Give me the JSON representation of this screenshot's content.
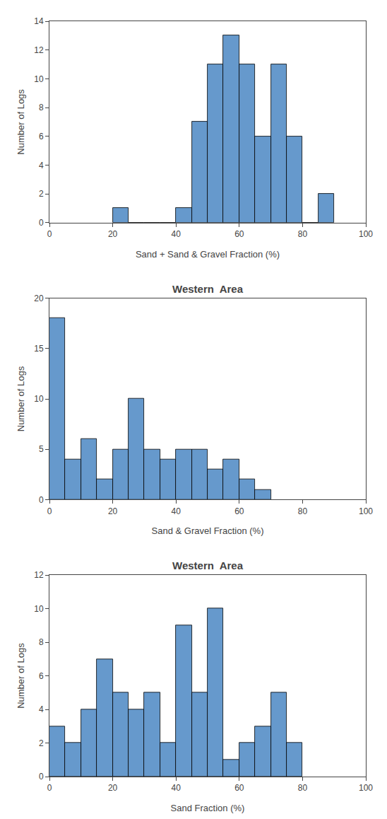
{
  "chart_data": [
    {
      "type": "histogram",
      "xlabel": "Sand + Sand & Gravel Fraction (%)",
      "ylabel": "Number of Logs",
      "bins": [
        20,
        25,
        30,
        35,
        40,
        45,
        50,
        55,
        60,
        65,
        70,
        75,
        80,
        85,
        90
      ],
      "values": [
        1,
        0,
        0,
        0,
        1,
        7,
        11,
        13,
        11,
        6,
        11,
        6,
        0,
        2
      ],
      "color": "#6699CC",
      "xlim": [
        0,
        100
      ],
      "xticks": [
        0,
        20,
        40,
        60,
        80,
        100
      ],
      "ylim": [
        0,
        14
      ],
      "yticks": [
        0,
        2,
        4,
        6,
        8,
        10,
        12,
        14
      ],
      "grid": false
    },
    {
      "type": "histogram",
      "title": "Western  Area",
      "xlabel": "Sand & Gravel Fraction (%)",
      "ylabel": "Number of Logs",
      "bins": [
        0,
        5,
        10,
        15,
        20,
        25,
        30,
        35,
        40,
        45,
        50,
        55,
        60,
        65,
        70
      ],
      "values": [
        18,
        4,
        6,
        2,
        5,
        10,
        5,
        4,
        5,
        5,
        3,
        4,
        2,
        1
      ],
      "color": "#6699CC",
      "xlim": [
        0,
        100
      ],
      "xticks": [
        0,
        20,
        40,
        60,
        80,
        100
      ],
      "ylim": [
        0,
        20
      ],
      "yticks": [
        0,
        5,
        10,
        15,
        20
      ],
      "grid": false
    },
    {
      "type": "histogram",
      "title": "Western  Area",
      "xlabel": "Sand Fraction (%)",
      "ylabel": "Number of Logs",
      "bins": [
        0,
        5,
        10,
        15,
        20,
        25,
        30,
        35,
        40,
        45,
        50,
        55,
        60,
        65,
        70,
        75,
        80
      ],
      "values": [
        3,
        2,
        4,
        7,
        5,
        4,
        5,
        2,
        9,
        5,
        10,
        1,
        2,
        3,
        5,
        2
      ],
      "color": "#6699CC",
      "xlim": [
        0,
        100
      ],
      "xticks": [
        0,
        20,
        40,
        60,
        80,
        100
      ],
      "ylim": [
        0,
        12
      ],
      "yticks": [
        0,
        2,
        4,
        6,
        8,
        10,
        12
      ],
      "grid": false
    }
  ]
}
